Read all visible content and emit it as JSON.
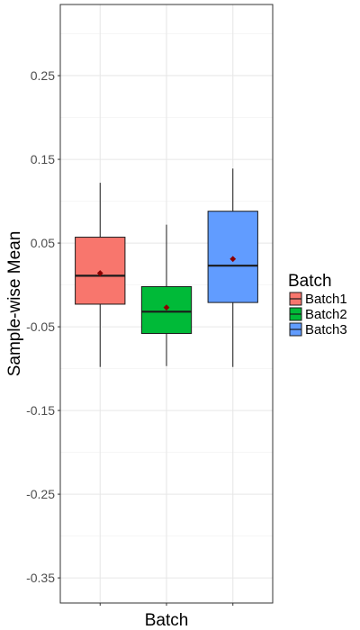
{
  "chart_data": {
    "type": "boxplot",
    "xlabel": "Batch",
    "ylabel": "Sample-wise Mean",
    "ylim": [
      -0.38,
      0.335
    ],
    "y_ticks": [
      0.25,
      0.15,
      0.05,
      -0.05,
      -0.15,
      -0.25,
      -0.35
    ],
    "y_tick_labels": [
      "0.25",
      "0.15",
      "0.05",
      "-0.05",
      "-0.15",
      "-0.25",
      "-0.35"
    ],
    "y_minor_ticks": [
      0.3,
      0.2,
      0.1,
      0.0,
      -0.1,
      -0.2,
      -0.3
    ],
    "grid": true,
    "legend": {
      "title": "Batch",
      "position": "right"
    },
    "series": [
      {
        "name": "Batch1",
        "color": "#F8766D",
        "whisker_low": -0.098,
        "q1": -0.023,
        "median": 0.011,
        "q3": 0.057,
        "whisker_high": 0.122,
        "mean": 0.014
      },
      {
        "name": "Batch2",
        "color": "#00BA38",
        "whisker_low": -0.097,
        "q1": -0.058,
        "median": -0.032,
        "q3": -0.002,
        "whisker_high": 0.072,
        "mean": -0.027
      },
      {
        "name": "Batch3",
        "color": "#619CFF",
        "whisker_low": -0.098,
        "q1": -0.021,
        "median": 0.023,
        "q3": 0.088,
        "whisker_high": 0.139,
        "mean": 0.031
      }
    ],
    "mean_marker_color": "#8B0000"
  }
}
